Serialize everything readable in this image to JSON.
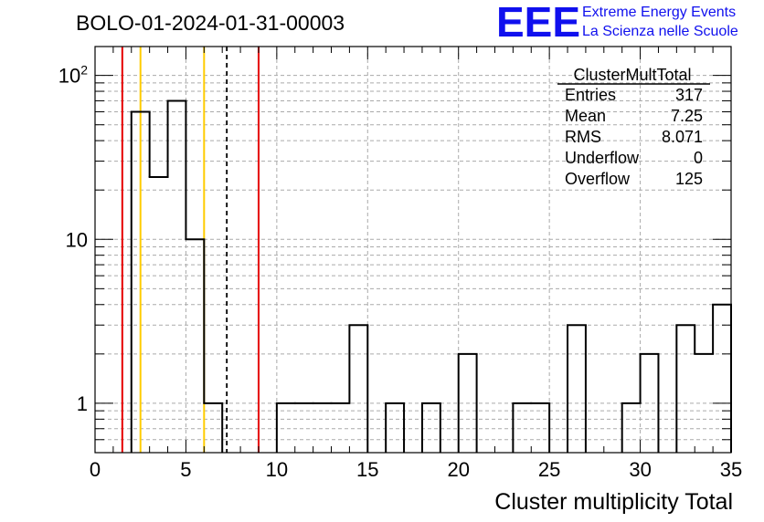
{
  "header": {
    "run_title": "BOLO-01-2024-01-31-00003",
    "logo_mark": "EEE",
    "logo_line1": "Extreme Energy Events",
    "logo_line2": "La Scienza nelle Scuole"
  },
  "stats_box": {
    "name": "ClusterMultTotal",
    "rows": [
      {
        "label": "Entries",
        "value": "317"
      },
      {
        "label": "Mean",
        "value": "7.25"
      },
      {
        "label": "RMS",
        "value": "8.071"
      },
      {
        "label": "Underflow",
        "value": "0"
      },
      {
        "label": "Overflow",
        "value": "125"
      }
    ]
  },
  "chart_data": {
    "type": "histogram",
    "xlabel": "Cluster multiplicity Total",
    "ylabel": "",
    "xlim": [
      0,
      35
    ],
    "ylim": [
      0.5,
      150
    ],
    "ylog": true,
    "grid": true,
    "bin_width": 1,
    "bins": [
      {
        "x": 2.5,
        "count": 60
      },
      {
        "x": 3.5,
        "count": 24
      },
      {
        "x": 4.5,
        "count": 70
      },
      {
        "x": 5.5,
        "count": 10
      },
      {
        "x": 6.5,
        "count": 1
      },
      {
        "x": 10.5,
        "count": 1
      },
      {
        "x": 11.5,
        "count": 1
      },
      {
        "x": 12.5,
        "count": 1
      },
      {
        "x": 13.5,
        "count": 1
      },
      {
        "x": 14.5,
        "count": 3
      },
      {
        "x": 16.5,
        "count": 1
      },
      {
        "x": 18.5,
        "count": 1
      },
      {
        "x": 20.5,
        "count": 2
      },
      {
        "x": 23.5,
        "count": 1
      },
      {
        "x": 24.5,
        "count": 1
      },
      {
        "x": 26.5,
        "count": 3
      },
      {
        "x": 29.5,
        "count": 1
      },
      {
        "x": 30.5,
        "count": 2
      },
      {
        "x": 32.5,
        "count": 3
      },
      {
        "x": 33.5,
        "count": 2
      },
      {
        "x": 34.5,
        "count": 4
      }
    ],
    "x_ticks": [
      "0",
      "5",
      "10",
      "15",
      "20",
      "25",
      "30",
      "35"
    ],
    "y_ticks": [
      {
        "value": 1,
        "label": "1"
      },
      {
        "value": 10,
        "label": "10"
      },
      {
        "value": 100,
        "label": "10",
        "exponent": "2"
      }
    ],
    "vertical_lines": [
      {
        "x": 1.5,
        "color": "#e60000",
        "style": "solid"
      },
      {
        "x": 2.5,
        "color": "#ffcc00",
        "style": "solid"
      },
      {
        "x": 6.0,
        "color": "#ffcc00",
        "style": "solid"
      },
      {
        "x": 7.25,
        "color": "#000000",
        "style": "dashed"
      },
      {
        "x": 9.0,
        "color": "#e60000",
        "style": "solid"
      }
    ]
  }
}
